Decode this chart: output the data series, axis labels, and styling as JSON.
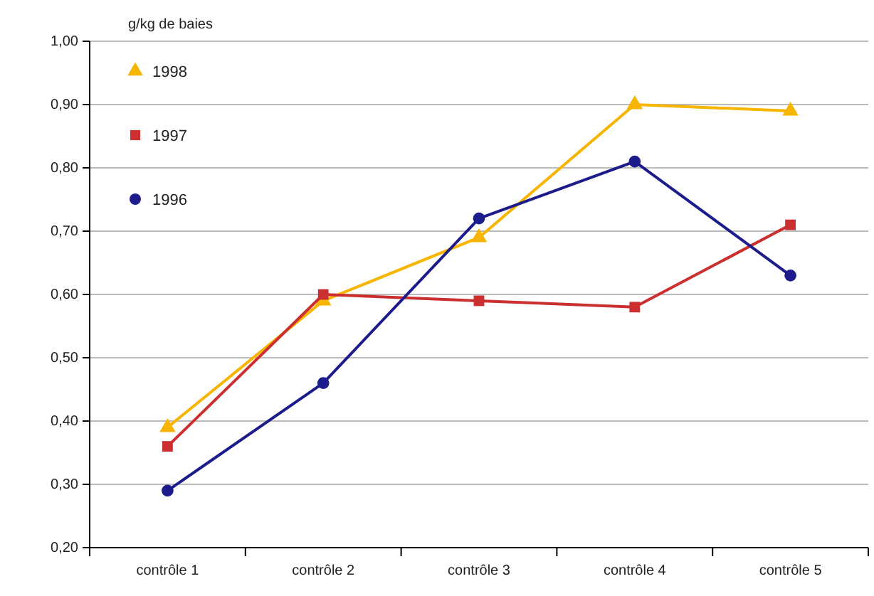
{
  "chart_data": {
    "type": "line",
    "ylabel": "g/kg de baies",
    "categories": [
      "contrôle 1",
      "contrôle 2",
      "contrôle 3",
      "contrôle 4",
      "contrôle 5"
    ],
    "series": [
      {
        "name": "1998",
        "color": "#f7b500",
        "marker": "triangle",
        "values": [
          0.39,
          0.59,
          0.69,
          0.9,
          0.89
        ]
      },
      {
        "name": "1997",
        "color": "#cc2f2f",
        "marker": "square",
        "values": [
          0.36,
          0.6,
          0.59,
          0.58,
          0.71
        ]
      },
      {
        "name": "1996",
        "color": "#1c1c8c",
        "marker": "circle",
        "values": [
          0.29,
          0.46,
          0.72,
          0.81,
          0.63
        ]
      }
    ],
    "ylim": [
      0.2,
      1.0
    ],
    "yticks": [
      {
        "value": 0.2,
        "label": "0,20"
      },
      {
        "value": 0.3,
        "label": "0,30"
      },
      {
        "value": 0.4,
        "label": "0,40"
      },
      {
        "value": 0.5,
        "label": "0,50"
      },
      {
        "value": 0.6,
        "label": "0,60"
      },
      {
        "value": 0.7,
        "label": "0,70"
      },
      {
        "value": 0.8,
        "label": "0,80"
      },
      {
        "value": 0.9,
        "label": "0,90"
      },
      {
        "value": 1.0,
        "label": "1,00"
      }
    ],
    "grid": "y",
    "legend": "top left",
    "line_style": "solid"
  }
}
